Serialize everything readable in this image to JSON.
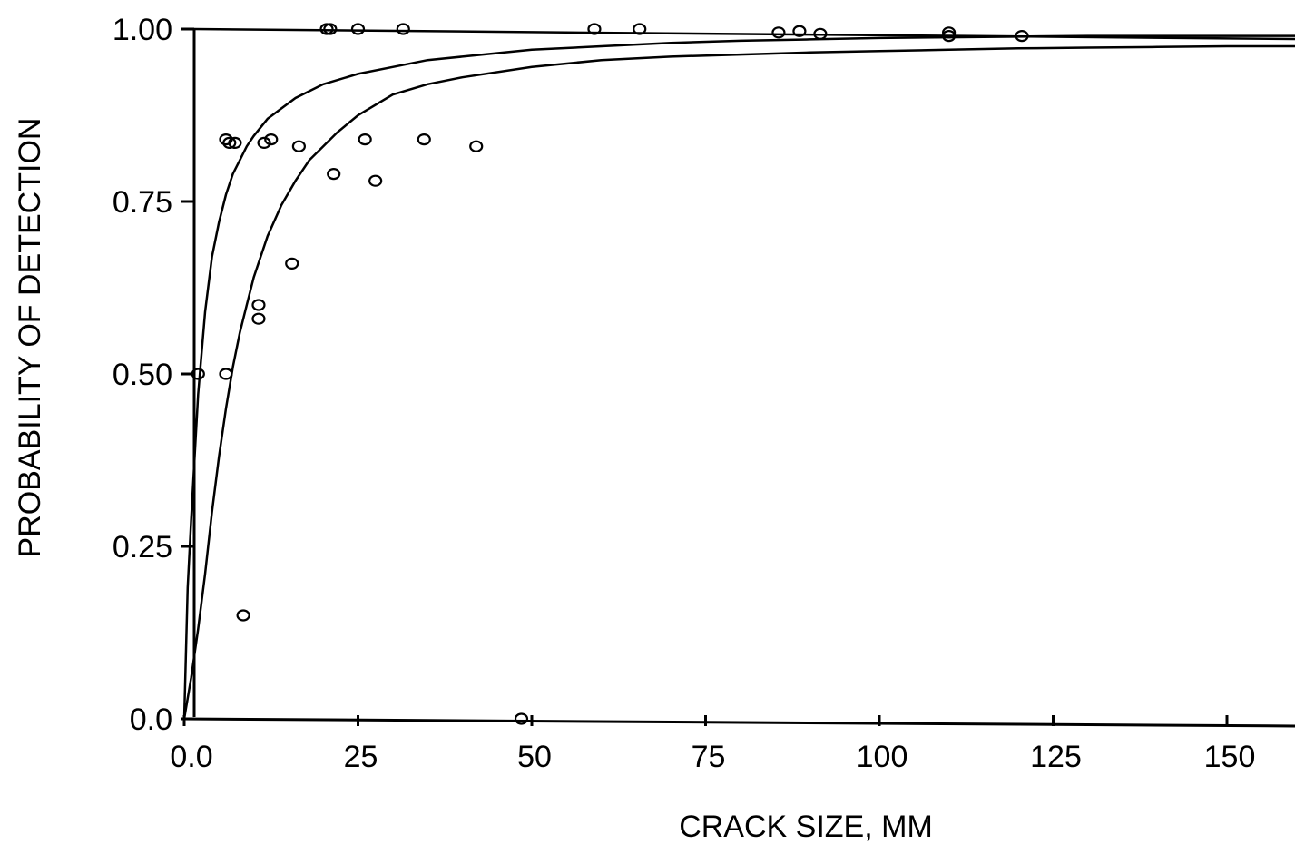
{
  "chart_data": {
    "type": "scatter",
    "title": "",
    "xlabel": "CRACK SIZE, MM",
    "ylabel": "PROBABILITY OF DETECTION",
    "xlim": [
      0,
      160
    ],
    "ylim": [
      0,
      1
    ],
    "grid": false,
    "x_ticks": [
      {
        "value": 0,
        "label": "0.0"
      },
      {
        "value": 25,
        "label": "25"
      },
      {
        "value": 50,
        "label": "50"
      },
      {
        "value": 75,
        "label": "75"
      },
      {
        "value": 100,
        "label": "100"
      },
      {
        "value": 125,
        "label": "125"
      },
      {
        "value": 150,
        "label": "150"
      }
    ],
    "y_ticks": [
      {
        "value": 0,
        "label": "0.0"
      },
      {
        "value": 0.25,
        "label": "0.25"
      },
      {
        "value": 0.5,
        "label": "0.50"
      },
      {
        "value": 0.75,
        "label": "0.75"
      },
      {
        "value": 1.0,
        "label": "1.00"
      }
    ],
    "points": [
      {
        "x": 2,
        "y": 0.5
      },
      {
        "x": 6,
        "y": 0.5
      },
      {
        "x": 6,
        "y": 0.84
      },
      {
        "x": 6.5,
        "y": 0.835
      },
      {
        "x": 7.3,
        "y": 0.835
      },
      {
        "x": 8.5,
        "y": 0.15
      },
      {
        "x": 10.7,
        "y": 0.6
      },
      {
        "x": 10.7,
        "y": 0.58
      },
      {
        "x": 11.5,
        "y": 0.835
      },
      {
        "x": 12.5,
        "y": 0.84
      },
      {
        "x": 15.5,
        "y": 0.66
      },
      {
        "x": 16.5,
        "y": 0.83
      },
      {
        "x": 20.5,
        "y": 1.0
      },
      {
        "x": 21,
        "y": 1.0
      },
      {
        "x": 21.5,
        "y": 0.79
      },
      {
        "x": 25,
        "y": 1.0
      },
      {
        "x": 26,
        "y": 0.84
      },
      {
        "x": 27.5,
        "y": 0.78
      },
      {
        "x": 31.5,
        "y": 1.0
      },
      {
        "x": 34.5,
        "y": 0.84
      },
      {
        "x": 42,
        "y": 0.83
      },
      {
        "x": 48.5,
        "y": 0.0
      },
      {
        "x": 59,
        "y": 1.0
      },
      {
        "x": 65.5,
        "y": 1.0
      },
      {
        "x": 85.5,
        "y": 0.995
      },
      {
        "x": 88.5,
        "y": 0.997
      },
      {
        "x": 91.5,
        "y": 0.993
      },
      {
        "x": 110,
        "y": 0.995
      },
      {
        "x": 110,
        "y": 0.99
      },
      {
        "x": 120.5,
        "y": 0.99
      }
    ],
    "curves": [
      {
        "x": [
          0,
          0.5,
          1,
          2,
          3,
          4,
          5,
          6,
          7,
          8,
          9,
          10,
          12,
          14,
          16,
          18,
          20,
          25,
          30,
          35,
          40,
          50,
          60,
          70,
          80,
          90,
          100,
          110,
          120,
          130,
          140,
          150,
          160
        ],
        "y": [
          0,
          0.19,
          0.29,
          0.47,
          0.59,
          0.67,
          0.72,
          0.76,
          0.79,
          0.81,
          0.83,
          0.845,
          0.87,
          0.885,
          0.9,
          0.91,
          0.92,
          0.935,
          0.945,
          0.955,
          0.96,
          0.97,
          0.975,
          0.98,
          0.983,
          0.985,
          0.987,
          0.988,
          0.989,
          0.99,
          0.99,
          0.99,
          0.99
        ]
      },
      {
        "x": [
          0,
          1,
          2,
          3,
          4,
          5,
          6,
          7,
          8,
          9,
          10,
          12,
          14,
          16,
          18,
          20,
          22,
          25,
          30,
          35,
          40,
          50,
          60,
          70,
          80,
          90,
          100,
          110,
          120,
          130,
          140,
          150,
          160
        ],
        "y": [
          0,
          0.06,
          0.13,
          0.21,
          0.3,
          0.38,
          0.45,
          0.51,
          0.56,
          0.6,
          0.64,
          0.7,
          0.745,
          0.78,
          0.81,
          0.83,
          0.85,
          0.875,
          0.905,
          0.92,
          0.93,
          0.945,
          0.955,
          0.96,
          0.963,
          0.966,
          0.968,
          0.97,
          0.972,
          0.973,
          0.974,
          0.975,
          0.975
        ]
      }
    ],
    "upper_bound_line": {
      "y": 1.0
    }
  }
}
